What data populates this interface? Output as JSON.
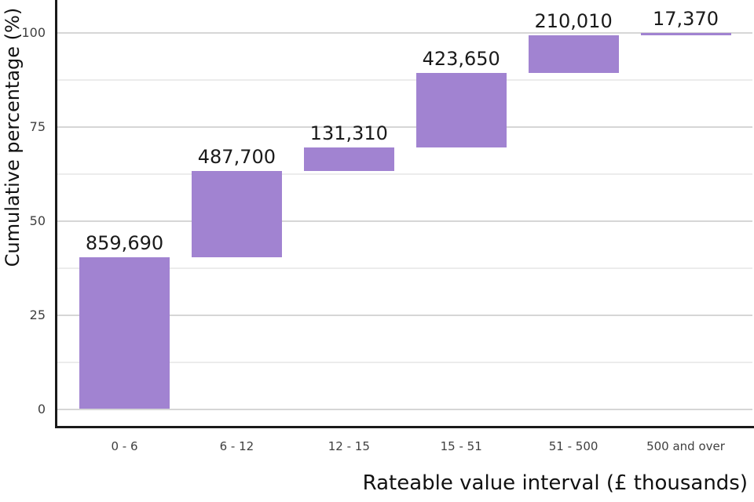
{
  "figure": {
    "background": "#ffffff",
    "axis_color": "#1a1a1a"
  },
  "chart_data": {
    "type": "bar",
    "variant": "waterfall",
    "title": "",
    "xlabel": "Rateable value interval (£ thousands)",
    "ylabel": "Cumulative percentage (%)",
    "categories": [
      "0 - 6",
      "6 - 12",
      "12 - 15",
      "15 - 51",
      "51 - 500",
      "500 and over"
    ],
    "values": [
      859690,
      487700,
      131310,
      423650,
      210010,
      17370
    ],
    "bar_labels": [
      "859,690",
      "487,700",
      "131,310",
      "423,650",
      "210,010",
      "17,370"
    ],
    "cumulative_percent": [
      40.4,
      63.3,
      69.4,
      89.3,
      99.2,
      100.0
    ],
    "ytick_values": [
      0,
      25,
      50,
      75,
      100
    ],
    "ytick_labels": [
      "0",
      "25",
      "50",
      "75",
      "100"
    ],
    "ylim": [
      0,
      100
    ],
    "legend": "none",
    "grid": {
      "orientation": "horizontal",
      "major_color": "#d6d6d6",
      "minor_color": "#ececec",
      "minor_at_midpoints": true
    },
    "bar_color": "#a183d1",
    "label_color": "#1a1a1a",
    "tick_label_color": "#404040"
  }
}
